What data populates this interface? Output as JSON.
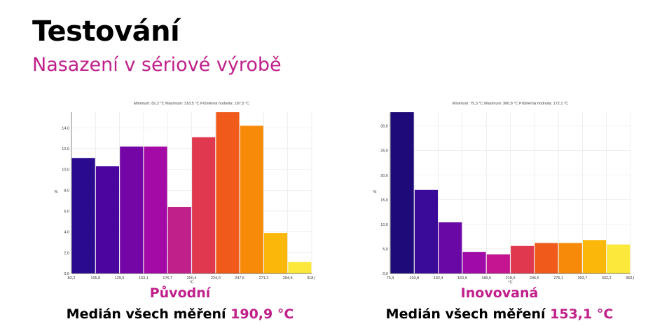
{
  "page": {
    "title": "Testování",
    "subtitle": "Nasazení v sériové výrobě"
  },
  "charts": [
    {
      "caption": "Původní",
      "median_label": "Medián všech měření",
      "median_value": "190,9 °C"
    },
    {
      "caption": "Inovovaná",
      "median_label": "Medián všech měření",
      "median_value": "153,1 °C"
    }
  ],
  "chart_data": [
    {
      "type": "bar",
      "title": "Minimum: 82,2 °C Maximum: 318,5 °C Průměrná hodnota: 187,5 °C",
      "xlabel": "°C",
      "ylabel": "%",
      "bin_edges": [
        "82,2",
        "105,8",
        "129,5",
        "153,1",
        "176,7",
        "200,4",
        "224,0",
        "247,6",
        "271,2",
        "294,9",
        "318,5"
      ],
      "values": [
        11.1,
        10.3,
        12.2,
        12.2,
        6.4,
        13.1,
        15.5,
        14.2,
        3.9,
        1.1
      ],
      "colors": [
        "#2a0a8f",
        "#4a069e",
        "#7406a6",
        "#a40aa6",
        "#c0208a",
        "#e0384f",
        "#f05a1a",
        "#f88a0a",
        "#fcb80a",
        "#fce83a"
      ],
      "yticks": [
        "0,0",
        "2,0",
        "4,0",
        "6,0",
        "8,0",
        "10,0",
        "12,0",
        "14,0"
      ],
      "ylim": [
        0,
        15.5
      ],
      "grid": true
    },
    {
      "type": "bar",
      "title": "Minimum: 75,3 °C Maximum: 360,8 °C Průměrná hodnota: 172,1 °C",
      "xlabel": "°C",
      "ylabel": "%",
      "bin_edges": [
        "75,3",
        "103,8",
        "132,4",
        "160,9",
        "189,5",
        "218,0",
        "246,6",
        "275,1",
        "303,7",
        "332,2",
        "360,8"
      ],
      "values": [
        32.8,
        17.0,
        10.4,
        4.4,
        3.9,
        5.6,
        6.2,
        6.2,
        6.8,
        5.9
      ],
      "colors": [
        "#1e0a78",
        "#3a0a98",
        "#6a08a6",
        "#a00aa8",
        "#c41490",
        "#e0384f",
        "#f05a1a",
        "#f88a0a",
        "#fcb80a",
        "#fce83a"
      ],
      "yticks": [
        "0,0",
        "5,0",
        "10,0",
        "15,0",
        "20,0",
        "25,0",
        "30,0"
      ],
      "ylim": [
        0,
        32.8
      ],
      "grid": true
    }
  ]
}
